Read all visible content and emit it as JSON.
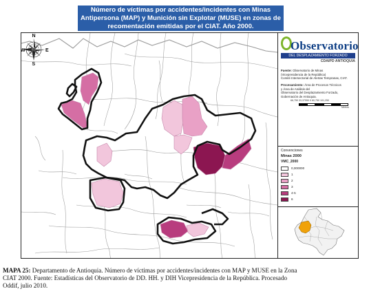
{
  "title": {
    "lines": [
      "Número de víctimas por accidentes/incidentes con Minas",
      "Antipersona (MAP) y Munición sin Explotar (MUSE) en zonas de",
      "recomentación emitidas por el CIAT. Año 2000."
    ]
  },
  "compass": {
    "north": "N",
    "south": "S",
    "east": "E",
    "west": "W"
  },
  "logo": {
    "wordmark": "Observatorio",
    "band": "DEL DESPLAZAMIENTO FORZADO",
    "sub": "CDAIPD ANTIOQUIA"
  },
  "source": {
    "label": "Fuente:",
    "lines": [
      "Observatorio de Minas",
      "(Vicepresidencia de la República)",
      "Comité Intersectorial de Alertas Tempranas, CIAT."
    ]
  },
  "processing": {
    "label": "Procesamiento:",
    "lines": [
      "Área de Procesos Técnicos",
      "y Área de Análisis del",
      "Observatorio del Desplazamiento Forzado,",
      "Gobernación de Antioquia."
    ]
  },
  "scale": {
    "ticks": "66,750 33,37550 0 60,750 101,250",
    "unit": "Metros",
    "colors": [
      "#000000",
      "#ffffff",
      "#000000",
      "#ffffff",
      "#000000",
      "#ffffff"
    ]
  },
  "legend": {
    "heading": "Convenciones",
    "title": "Minas 2000",
    "field": "VMC_2000",
    "classes": [
      {
        "label": "0,000000",
        "color": "#ffffff"
      },
      {
        "label": "1",
        "color": "#f2c6dc"
      },
      {
        "label": "2",
        "color": "#e9a1c6"
      },
      {
        "label": "3",
        "color": "#d56ea4"
      },
      {
        "label": "4-5",
        "color": "#b83c7e"
      },
      {
        "label": "6",
        "color": "#8c1651"
      }
    ]
  },
  "inset": {
    "highlight_color": "#f0a20a"
  },
  "map_colors": {
    "border": "#111111",
    "municipality_line": "#9a9a9a",
    "class_1": "#f2c6dc",
    "class_2": "#e9a1c6",
    "class_3": "#d56ea4",
    "class_5": "#b83c7e",
    "class_6": "#8c1651"
  },
  "caption": {
    "label": "MAPA 25:",
    "lines": [
      " Departamento de Antioquia. Número de víctimas por accidentes/incidentes con MAP y MUSE en la Zona",
      "CIAT 2000. Fuente: Estadísticas del Observatorio de DD. HH. y DIH Vicepresidencia de la República. Procesado",
      "Oddif, julio 2010."
    ]
  }
}
